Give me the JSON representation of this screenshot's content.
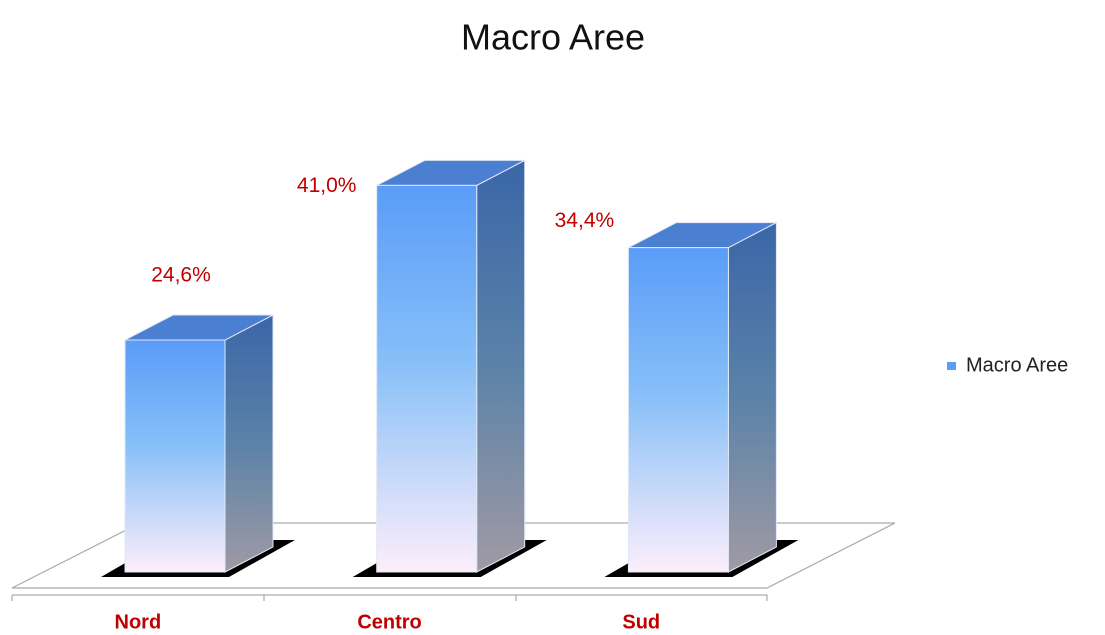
{
  "chart_data": {
    "type": "bar",
    "title": "Macro Aree",
    "categories": [
      "Nord",
      "Centro",
      "Sud"
    ],
    "series": [
      {
        "name": "Macro Aree",
        "color": "#5a9cf8",
        "values": [
          24.6,
          41.0,
          34.4
        ],
        "value_labels": [
          "24,6%",
          "41,0%",
          "34,4%"
        ]
      }
    ],
    "legend": "right"
  }
}
